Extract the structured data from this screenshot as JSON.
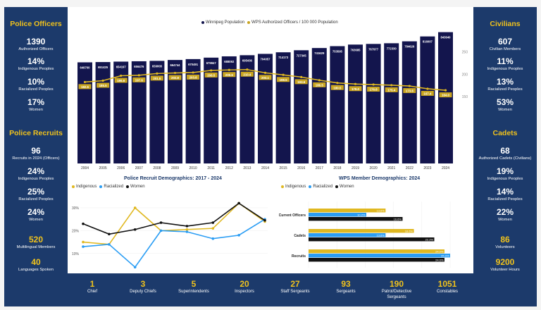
{
  "police_officers": {
    "title": "Police Officers",
    "stats": [
      {
        "value": "1390",
        "label": "Authorized Officers"
      },
      {
        "value": "14%",
        "label": "Indigenous Peoples"
      },
      {
        "value": "10%",
        "label": "Racialized Peoples"
      },
      {
        "value": "17%",
        "label": "Women"
      }
    ]
  },
  "police_recruits": {
    "title": "Police Recruits",
    "stats": [
      {
        "value": "96",
        "label": "Recruits in 2024 (Officers)"
      },
      {
        "value": "24%",
        "label": "Indigenous Peoples"
      },
      {
        "value": "25%",
        "label": "Racialized Peoples"
      },
      {
        "value": "24%",
        "label": "Women"
      }
    ],
    "extra": [
      {
        "value": "520",
        "label": "Multilingual Members"
      },
      {
        "value": "40",
        "label": "Languages Spoken"
      }
    ]
  },
  "civilians": {
    "title": "Civilians",
    "stats": [
      {
        "value": "607",
        "label": "Civilian Members"
      },
      {
        "value": "11%",
        "label": "Indigenous Peoples"
      },
      {
        "value": "13%",
        "label": "Racialized Peoples"
      },
      {
        "value": "53%",
        "label": "Women"
      }
    ]
  },
  "cadets": {
    "title": "Cadets",
    "stats": [
      {
        "value": "68",
        "label": "Authorized Cadets (Civilians)"
      },
      {
        "value": "19%",
        "label": "Indigenous Peoples"
      },
      {
        "value": "14%",
        "label": "Racialized Peoples"
      },
      {
        "value": "22%",
        "label": "Women"
      }
    ],
    "extra": [
      {
        "value": "86",
        "label": "Volunteers"
      },
      {
        "value": "9200",
        "label": "Volunteer Hours"
      }
    ]
  },
  "ranks": [
    {
      "value": "1",
      "label": "Chief"
    },
    {
      "value": "3",
      "label": "Deputy Chiefs"
    },
    {
      "value": "5",
      "label": "Superintendents"
    },
    {
      "value": "20",
      "label": "Inspectors"
    },
    {
      "value": "27",
      "label": "Staff Sergeants"
    },
    {
      "value": "93",
      "label": "Sergeants"
    },
    {
      "value": "190",
      "label": "Patrol/Detective Sergeants"
    },
    {
      "value": "1051",
      "label": "Constables"
    }
  ],
  "colors": {
    "navy": "#13154d",
    "gold": "#c9a520",
    "blue": "#2a9df4",
    "black": "#111111",
    "panel": "#1c3a6b",
    "accent": "#f0c21c"
  },
  "chart_data": [
    {
      "type": "bar",
      "legend": [
        "Winnipeg Population",
        "WPS Authorized Officers / 100 000 Population"
      ],
      "categories": [
        "2004",
        "2005",
        "2006",
        "2007",
        "2008",
        "2009",
        "2010",
        "2011",
        "2012",
        "2013",
        "2014",
        "2015",
        "2016",
        "2017",
        "2018",
        "2019",
        "2020",
        "2021",
        "2022",
        "2023",
        "2024"
      ],
      "population": [
        649700,
        651425,
        654197,
        656476,
        659008,
        664744,
        670491,
        679847,
        688092,
        695436,
        704057,
        714173,
        727345,
        741629,
        753595,
        763685,
        767977,
        772330,
        784626,
        816097,
        843640
      ],
      "population_labels": [
        "649700",
        "651425",
        "654197",
        "656476",
        "659008",
        "664744",
        "670491",
        "679847",
        "688092",
        "695436",
        "704057",
        "714173",
        "727345",
        "741629",
        "753595",
        "763685",
        "767977",
        "772330",
        "784626",
        "816097",
        "843640"
      ],
      "officers_per_100k": [
        182.5,
        185.5,
        196.6,
        197.6,
        201.5,
        202.8,
        203.8,
        208.5,
        209.6,
        210.4,
        203.1,
        198.5,
        193.6,
        186.5,
        180.5,
        178.0,
        176.8,
        175.4,
        173.6,
        167.4,
        164.0
      ],
      "officers_labels": [
        "182.5",
        "185.5",
        "196.6",
        "197.6",
        "201.5",
        "202.8",
        "203.8",
        "208.5",
        "209.6",
        "210.4",
        "203.1",
        "198.5",
        "193.6",
        "186.5",
        "180.5",
        "178.0",
        "176.8",
        "175.4",
        "173.6",
        "167.4",
        "164.0"
      ],
      "right_axis_ticks": [
        "150",
        "200",
        "250"
      ],
      "right_axis_range": [
        0,
        300
      ]
    },
    {
      "type": "line",
      "title": "Police Recruit Demographics: 2017 - 2024",
      "legend": [
        "Indigenous",
        "Racialized",
        "Women"
      ],
      "x": [
        "2017",
        "2018",
        "2019",
        "2020",
        "2021",
        "2022",
        "2023",
        "2024"
      ],
      "series": [
        {
          "name": "Indigenous",
          "values": [
            15,
            14,
            30,
            20,
            20.5,
            21,
            32,
            24
          ]
        },
        {
          "name": "Racialized",
          "values": [
            13,
            14,
            4,
            20,
            19.5,
            16.5,
            18,
            25
          ]
        },
        {
          "name": "Women",
          "values": [
            23,
            18.5,
            20.5,
            23.5,
            22,
            23.5,
            32,
            24.5
          ]
        }
      ],
      "y_ticks": [
        "10%",
        "20%",
        "30%"
      ],
      "ylim": [
        5,
        34
      ]
    },
    {
      "type": "bar",
      "title": "WPS Member Demographics: 2024",
      "legend": [
        "Indigenous",
        "Racialized",
        "Women"
      ],
      "categories": [
        "Current Officers",
        "Cadets",
        "Recruits"
      ],
      "series": [
        {
          "name": "Indigenous",
          "values": [
            13.6,
            18.6,
            24.0
          ],
          "labels": [
            "13.6%",
            "18.6%",
            "24.0%"
          ]
        },
        {
          "name": "Racialized",
          "values": [
            10.2,
            13.6,
            25.0
          ],
          "labels": [
            "10.2%",
            "13.6%",
            "25.0%"
          ]
        },
        {
          "name": "Women",
          "values": [
            16.6,
            22.2,
            24.0
          ],
          "labels": [
            "16.6%",
            "22.2%",
            "24.0%"
          ]
        }
      ],
      "x_ticks": [
        "0%",
        "5%",
        "10%",
        "15%",
        "20%",
        "25%"
      ],
      "xlim": [
        0,
        25
      ]
    }
  ]
}
